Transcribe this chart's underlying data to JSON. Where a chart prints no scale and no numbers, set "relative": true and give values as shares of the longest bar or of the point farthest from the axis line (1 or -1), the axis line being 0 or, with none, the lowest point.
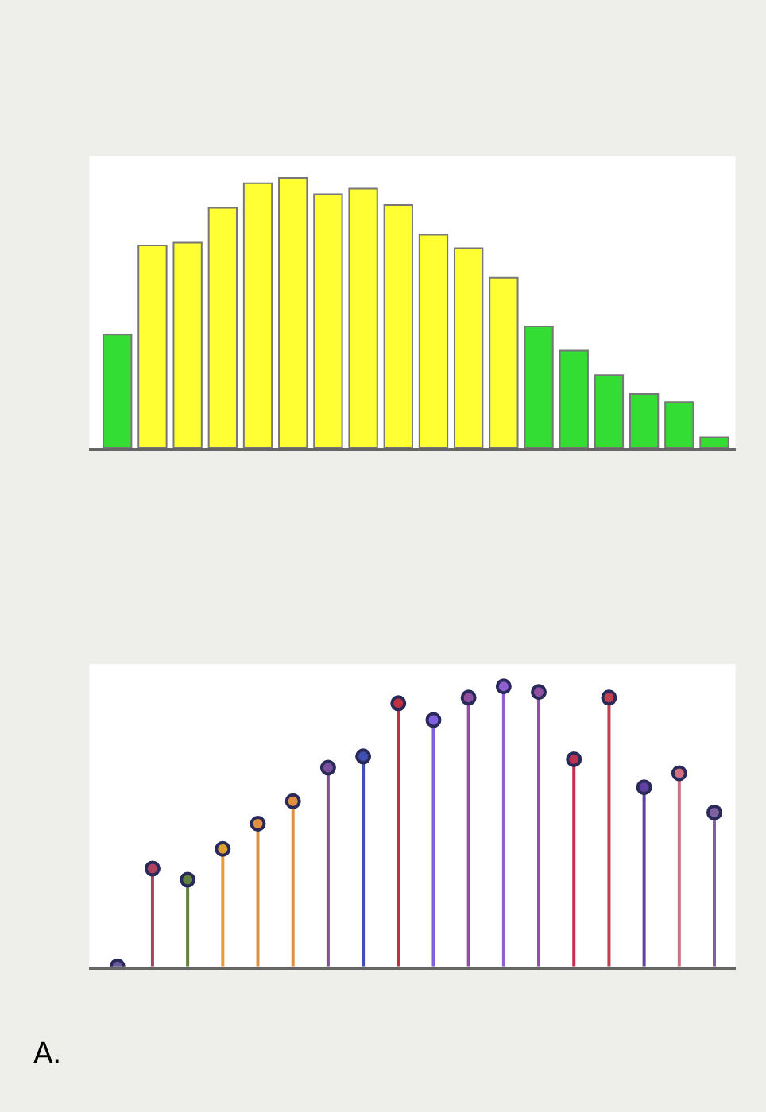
{
  "chart_data": [
    {
      "type": "bar",
      "relative": true,
      "categories": [
        null,
        null,
        null,
        null,
        null,
        null,
        null,
        null,
        null,
        null,
        null,
        null,
        null,
        null,
        null,
        null,
        null,
        null
      ],
      "values": [
        0.42,
        0.75,
        0.76,
        0.89,
        0.98,
        1,
        0.94,
        0.96,
        0.9,
        0.79,
        0.74,
        0.63,
        0.45,
        0.36,
        0.27,
        0.2,
        0.17,
        0.04
      ],
      "colors": [
        "#33dd33",
        "#ffff33",
        "#ffff33",
        "#ffff33",
        "#ffff33",
        "#ffff33",
        "#ffff33",
        "#ffff33",
        "#ffff33",
        "#ffff33",
        "#ffff33",
        "#ffff33",
        "#33dd33",
        "#33dd33",
        "#33dd33",
        "#33dd33",
        "#33dd33",
        "#33dd33"
      ]
    },
    {
      "type": "lollipop",
      "relative": true,
      "marker": "circle",
      "categories": [
        null,
        null,
        null,
        null,
        null,
        null,
        null,
        null,
        null,
        null,
        null,
        null,
        null,
        null,
        null,
        null,
        null,
        null
      ],
      "values": [
        0,
        0.35,
        0.31,
        0.42,
        0.51,
        0.59,
        0.71,
        0.75,
        0.94,
        0.88,
        0.96,
        1,
        0.98,
        0.74,
        0.96,
        0.64,
        0.69,
        0.55
      ],
      "colors": [
        "#6a5a9a",
        "#b04060",
        "#608040",
        "#e0a030",
        "#e09040",
        "#e09040",
        "#8050a0",
        "#4050b0",
        "#c03040",
        "#8060e0",
        "#9050a0",
        "#9060d0",
        "#9050a0",
        "#c03050",
        "#c04050",
        "#6040a0",
        "#d07080",
        "#8060a0"
      ],
      "annotations": [
        "A."
      ]
    }
  ]
}
